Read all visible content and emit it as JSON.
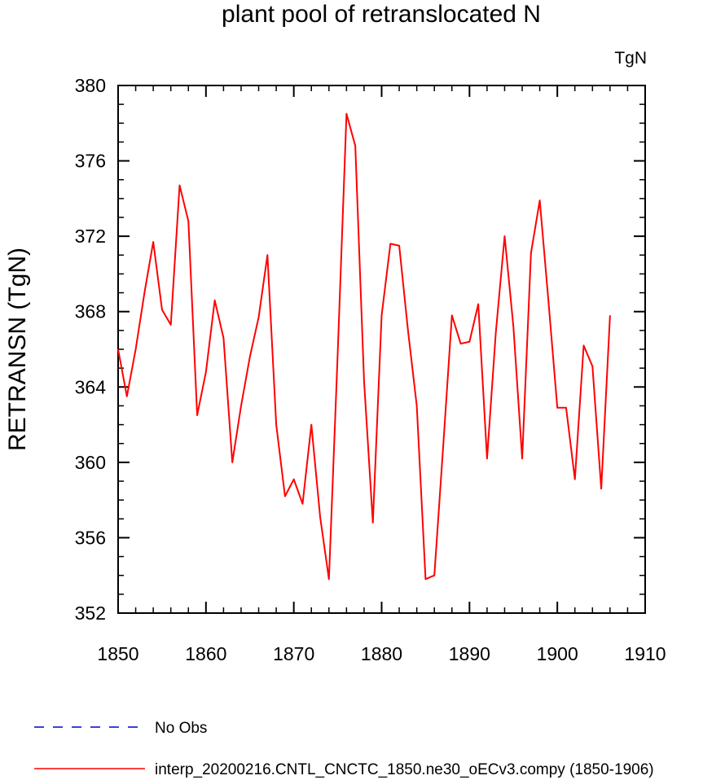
{
  "chart_data": {
    "type": "line",
    "title": "plant pool of retranslocated N",
    "units_label": "TgN",
    "ylabel": "RETRANSN  (TgN)",
    "xlabel": "",
    "xlim": [
      1850,
      1910
    ],
    "ylim": [
      352,
      380
    ],
    "x_ticks": [
      1850,
      1860,
      1870,
      1880,
      1890,
      1900,
      1910
    ],
    "y_ticks": [
      352,
      356,
      360,
      364,
      368,
      372,
      376,
      380
    ],
    "x_tick_labels": [
      "1850",
      "1860",
      "1870",
      "1880",
      "1890",
      "1900",
      "1910"
    ],
    "y_tick_labels": [
      "352",
      "356",
      "360",
      "364",
      "368",
      "372",
      "376",
      "380"
    ],
    "grid": false,
    "legend_position": "bottom-left",
    "legend": [
      {
        "label": "No Obs",
        "color": "#0000cc",
        "style": "dashed"
      },
      {
        "label": "interp_20200216.CNTL_CNCTC_1850.ne30_oECv3.compy (1850-1906)",
        "color": "#ff0000",
        "style": "solid"
      }
    ],
    "series": [
      {
        "name": "interp_20200216.CNTL_CNCTC_1850.ne30_oECv3.compy (1850-1906)",
        "color": "#ff0000",
        "x": [
          1850,
          1851,
          1852,
          1853,
          1854,
          1855,
          1856,
          1857,
          1858,
          1859,
          1860,
          1861,
          1862,
          1863,
          1864,
          1865,
          1866,
          1867,
          1868,
          1869,
          1870,
          1871,
          1872,
          1873,
          1874,
          1875,
          1876,
          1877,
          1878,
          1879,
          1880,
          1881,
          1882,
          1883,
          1884,
          1885,
          1886,
          1887,
          1888,
          1889,
          1890,
          1891,
          1892,
          1893,
          1894,
          1895,
          1896,
          1897,
          1898,
          1899,
          1900,
          1901,
          1902,
          1903,
          1904,
          1905,
          1906
        ],
        "y": [
          366.0,
          363.5,
          366.0,
          369.0,
          371.7,
          368.1,
          367.3,
          374.7,
          372.8,
          362.5,
          364.8,
          368.6,
          366.6,
          360.0,
          363.0,
          365.6,
          367.7,
          371.0,
          362.0,
          358.2,
          359.1,
          357.8,
          362.0,
          357.1,
          353.8,
          365.8,
          378.5,
          376.8,
          364.3,
          356.8,
          367.8,
          371.6,
          371.5,
          367.0,
          363.0,
          353.8,
          354.0,
          360.8,
          367.8,
          366.3,
          366.4,
          368.4,
          360.2,
          366.9,
          372.0,
          367.2,
          360.2,
          371.1,
          373.9,
          368.5,
          362.9,
          362.9,
          359.1,
          366.2,
          365.1,
          358.6,
          367.8
        ]
      }
    ]
  }
}
